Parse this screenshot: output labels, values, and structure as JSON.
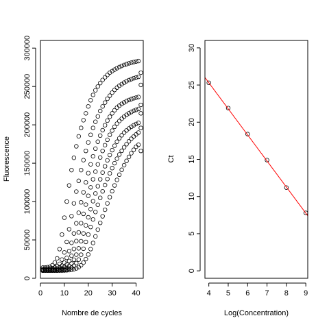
{
  "chart_data": [
    {
      "type": "scatter",
      "xlabel": "Nombre de cycles",
      "ylabel": "Fluorescence",
      "xlim": [
        0,
        43
      ],
      "ylim": [
        0,
        310000
      ],
      "x_ticks": [
        0,
        10,
        20,
        30,
        40
      ],
      "y_ticks": [
        0,
        50000,
        100000,
        150000,
        200000,
        250000,
        300000
      ],
      "grid": false,
      "point_color": "#000000",
      "series": [
        {
          "x": [
            1,
            2,
            3,
            4,
            5,
            6,
            7,
            8,
            9,
            10,
            11,
            12,
            13,
            14,
            15,
            16,
            17,
            18,
            19,
            20,
            21,
            22,
            23,
            24,
            25,
            26,
            27,
            28,
            29,
            30,
            31,
            32,
            33,
            34,
            35,
            36,
            37,
            38,
            39,
            40,
            41
          ],
          "y": [
            14000,
            14000,
            14500,
            15000,
            17000,
            20500,
            26000,
            38000,
            57000,
            79000,
            100000,
            121000,
            141000,
            157000,
            172000,
            185000,
            196000,
            206000,
            215000,
            224000,
            232000,
            239000,
            245000,
            250000,
            254500,
            258500,
            262000,
            265000,
            268000,
            270000,
            272000,
            273800,
            275300,
            276800,
            278000,
            279100,
            280100,
            281000,
            281800,
            282500,
            283100
          ]
        },
        {
          "x": [
            1,
            2,
            3,
            4,
            5,
            6,
            7,
            8,
            9,
            10,
            11,
            12,
            13,
            14,
            15,
            16,
            17,
            18,
            19,
            20,
            21,
            22,
            23,
            24,
            25,
            26,
            27,
            28,
            29,
            30,
            31,
            32,
            33,
            34,
            35,
            36,
            37,
            38,
            39,
            40,
            41,
            42
          ],
          "y": [
            12000,
            12200,
            12400,
            12700,
            13200,
            14100,
            15700,
            18800,
            24400,
            33700,
            47400,
            63900,
            81000,
            97700,
            113000,
            127000,
            141000,
            154000,
            166000,
            177000,
            187000,
            196000,
            204000,
            211000,
            218000,
            224000,
            229000,
            234000,
            238000,
            242000,
            245500,
            248500,
            251000,
            253000,
            255000,
            256800,
            258200,
            259500,
            260700,
            261700,
            262600,
            268000
          ]
        },
        {
          "x": [
            1,
            2,
            3,
            4,
            5,
            6,
            7,
            8,
            9,
            10,
            11,
            12,
            13,
            14,
            15,
            16,
            17,
            18,
            19,
            20,
            21,
            22,
            23,
            24,
            25,
            26,
            27,
            28,
            29,
            30,
            31,
            32,
            33,
            34,
            35,
            36,
            37,
            38,
            39,
            40,
            41,
            42
          ],
          "y": [
            11000,
            11000,
            11100,
            11200,
            11400,
            11800,
            12600,
            14000,
            16400,
            20300,
            26600,
            35400,
            46200,
            58400,
            71700,
            85400,
            99000,
            112000,
            125000,
            137000,
            148500,
            159000,
            169000,
            178000,
            186000,
            193000,
            199500,
            205500,
            210500,
            215000,
            219000,
            222500,
            225000,
            227300,
            229200,
            230900,
            232300,
            233500,
            234600,
            235500,
            236300,
            252000
          ]
        },
        {
          "x": [
            1,
            2,
            3,
            4,
            5,
            6,
            7,
            8,
            9,
            10,
            11,
            12,
            13,
            14,
            15,
            16,
            17,
            18,
            19,
            20,
            21,
            22,
            23,
            24,
            25,
            26,
            27,
            28,
            29,
            30,
            31,
            32,
            33,
            34,
            35,
            36,
            37,
            38,
            39,
            40,
            41,
            42
          ],
          "y": [
            10500,
            10500,
            10500,
            10600,
            10700,
            10800,
            11100,
            11700,
            12900,
            14800,
            17900,
            22500,
            29400,
            38200,
            48500,
            59800,
            71900,
            84000,
            96000,
            107500,
            118500,
            129000,
            139000,
            148500,
            157500,
            166000,
            173500,
            180500,
            187000,
            192500,
            197500,
            201500,
            205000,
            208000,
            210700,
            213000,
            215000,
            216700,
            218200,
            219500,
            220700,
            226000
          ]
        },
        {
          "x": [
            1,
            2,
            3,
            4,
            5,
            6,
            7,
            8,
            9,
            10,
            11,
            12,
            13,
            14,
            15,
            16,
            17,
            18,
            19,
            20,
            21,
            22,
            23,
            24,
            25,
            26,
            27,
            28,
            29,
            30,
            31,
            32,
            33,
            34,
            35,
            36,
            37,
            38,
            39,
            40,
            41,
            42
          ],
          "y": [
            10000,
            10000,
            10000,
            10100,
            10100,
            10200,
            10300,
            10600,
            11100,
            12000,
            13500,
            15800,
            19200,
            24200,
            30800,
            39000,
            48300,
            58400,
            68900,
            79500,
            90000,
            100500,
            110500,
            120000,
            129000,
            137800,
            146000,
            153700,
            160700,
            167000,
            172800,
            178000,
            182500,
            186400,
            189800,
            192700,
            195300,
            197500,
            199400,
            201100,
            202600,
            215000
          ]
        },
        {
          "x": [
            1,
            2,
            3,
            4,
            5,
            6,
            7,
            8,
            9,
            10,
            11,
            12,
            13,
            14,
            15,
            16,
            17,
            18,
            19,
            20,
            21,
            22,
            23,
            24,
            25,
            26,
            27,
            28,
            29,
            30,
            31,
            32,
            33,
            34,
            35,
            36,
            37,
            38,
            39,
            40,
            41,
            42
          ],
          "y": [
            10000,
            10000,
            10000,
            10000,
            10000,
            10100,
            10100,
            10200,
            10400,
            10800,
            11400,
            12400,
            13900,
            16300,
            19700,
            24400,
            30700,
            38500,
            47400,
            57000,
            66800,
            76700,
            86400,
            95800,
            104800,
            113300,
            121500,
            129300,
            136700,
            143600,
            150000,
            155900,
            161300,
            166200,
            170700,
            174800,
            178500,
            181800,
            184800,
            187500,
            189900,
            196000
          ]
        },
        {
          "x": [
            1,
            2,
            3,
            4,
            5,
            6,
            7,
            8,
            9,
            10,
            11,
            12,
            13,
            14,
            15,
            16,
            17,
            18,
            19,
            20,
            21,
            22,
            23,
            24,
            25,
            26,
            27,
            28,
            29,
            30,
            31,
            32,
            33,
            34,
            35,
            36,
            37,
            38,
            39,
            40,
            41,
            42
          ],
          "y": [
            10000,
            10000,
            10000,
            10000,
            10000,
            10000,
            10000,
            10100,
            10100,
            10200,
            10400,
            10700,
            11100,
            11800,
            12900,
            14500,
            17000,
            20400,
            25000,
            31000,
            38000,
            46000,
            54600,
            63400,
            72200,
            80800,
            89300,
            97600,
            105700,
            113500,
            121000,
            128200,
            135000,
            141400,
            147400,
            153000,
            158200,
            163000,
            167400,
            171400,
            174000,
            166000
          ]
        }
      ]
    },
    {
      "type": "scatter",
      "xlabel": "Log(Concentration)",
      "ylabel": "Ct",
      "xlim": [
        3.8,
        9.1
      ],
      "ylim": [
        -1,
        31
      ],
      "x_ticks": [
        4,
        5,
        6,
        7,
        8,
        9
      ],
      "y_ticks": [
        0,
        5,
        10,
        15,
        20,
        25,
        30
      ],
      "grid": false,
      "point_color": "#000000",
      "points": {
        "x": [
          4,
          5,
          6,
          7,
          8,
          9
        ],
        "y": [
          25.3,
          21.9,
          18.4,
          14.9,
          11.2,
          7.8
        ]
      },
      "fit_line": {
        "slope": -3.51,
        "intercept": 39.35,
        "color": "#ff0000"
      }
    }
  ]
}
